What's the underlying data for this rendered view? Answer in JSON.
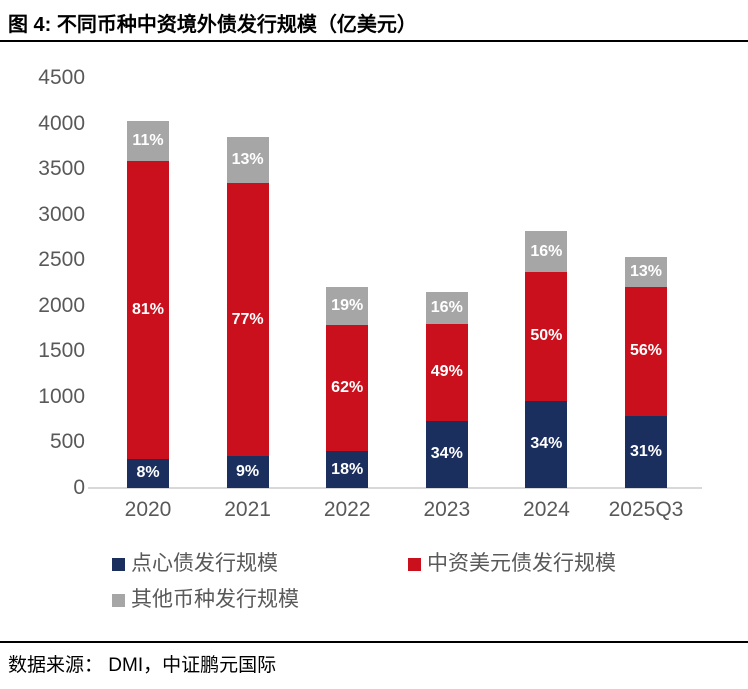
{
  "header": {
    "title": "图 4: 不同币种中资境外债发行规模（亿美元）"
  },
  "footer": {
    "text": "数据来源：  DMI，中证鹏元国际"
  },
  "colors": {
    "dim_sum_blue": "#1B2F5E",
    "usd_red": "#C9101C",
    "other_gray": "#A6A6A6",
    "axis_text": "#595959",
    "axis_line": "#D8D8D8",
    "bar_label_text": "#FFFFFF",
    "rule_black": "#000000"
  },
  "chart_data": {
    "type": "bar",
    "stacked": true,
    "title": "图 4: 不同币种中资境外债发行规模（亿美元）",
    "unit": "亿美元",
    "categories": [
      "2020",
      "2021",
      "2022",
      "2023",
      "2024",
      "2025Q3"
    ],
    "totals_approx": [
      4030,
      3850,
      2210,
      2150,
      2820,
      2540
    ],
    "series": [
      {
        "name": "点心债发行规模",
        "color": "#1B2F5E",
        "percent_labels": [
          "8%",
          "9%",
          "18%",
          "34%",
          "34%",
          "31%"
        ],
        "percent": [
          8,
          9,
          18,
          34,
          34,
          31
        ]
      },
      {
        "name": "中资美元债发行规模",
        "color": "#C9101C",
        "percent_labels": [
          "81%",
          "77%",
          "62%",
          "49%",
          "50%",
          "56%"
        ],
        "percent": [
          81,
          77,
          62,
          49,
          50,
          56
        ]
      },
      {
        "name": "其他币种发行规模",
        "color": "#A6A6A6",
        "percent_labels": [
          "11%",
          "13%",
          "19%",
          "16%",
          "16%",
          "13%"
        ],
        "percent": [
          11,
          13,
          19,
          16,
          16,
          13
        ]
      }
    ],
    "xlabel": "",
    "ylabel": "",
    "ylim": [
      0,
      4500
    ],
    "ytick_step": 500,
    "ytick_labels": [
      "0",
      "500",
      "1000",
      "1500",
      "2000",
      "2500",
      "3000",
      "3500",
      "4000",
      "4500"
    ],
    "grid": false,
    "legend_position": "bottom",
    "bar_value_labels": "percent-of-total"
  }
}
